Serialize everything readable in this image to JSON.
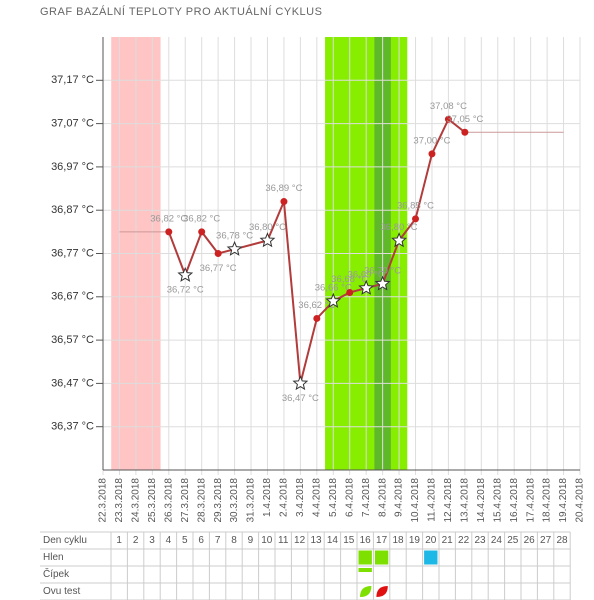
{
  "chart_data": {
    "type": "line",
    "title": "GRAF BAZÁLNÍ TEPLOTY PRO AKTUÁLNÍ CYKLUS",
    "x": [
      "22.3.2018",
      "23.3.2018",
      "24.3.2018",
      "25.3.2018",
      "26.3.2018",
      "27.3.2018",
      "28.3.2018",
      "29.3.2018",
      "30.3.2018",
      "31.3.2018",
      "1.4.2018",
      "2.4.2018",
      "3.4.2018",
      "4.4.2018",
      "5.4.2018",
      "6.4.2018",
      "7.4.2018",
      "8.4.2018",
      "9.4.2018",
      "10.4.2018",
      "11.4.2018",
      "12.4.2018",
      "13.4.2018",
      "14.4.2018",
      "15.4.2018",
      "16.4.2018",
      "17.4.2018",
      "18.4.2018",
      "19.4.2018",
      "20.4.2018"
    ],
    "ylim": [
      36.27,
      37.27
    ],
    "yticks": [
      {
        "value": 36.37,
        "label": "36,37 °C"
      },
      {
        "value": 36.47,
        "label": "36,47 °C"
      },
      {
        "value": 36.57,
        "label": "36,57 °C"
      },
      {
        "value": 36.67,
        "label": "36,67 °C"
      },
      {
        "value": 36.77,
        "label": "36,77 °C"
      },
      {
        "value": 36.87,
        "label": "36,87 °C"
      },
      {
        "value": 36.97,
        "label": "36,97 °C"
      },
      {
        "value": 37.07,
        "label": "37,07 °C"
      },
      {
        "value": 37.17,
        "label": "37,17 °C"
      }
    ],
    "grid": true,
    "bands": [
      {
        "from": "23.3.2018",
        "to": "25.3.2018",
        "color": "#ffc4c4"
      },
      {
        "from": "5.4.2018",
        "to": "9.4.2018",
        "color": "#88ee00"
      },
      {
        "from": "8.4.2018",
        "to": "8.4.2018",
        "color": "#5fb82a"
      }
    ],
    "series": [
      {
        "color": "#b23b3b",
        "x": [
          "26.3.2018",
          "27.3.2018",
          "28.3.2018",
          "29.3.2018",
          "30.3.2018",
          "1.4.2018",
          "2.4.2018",
          "3.4.2018",
          "4.4.2018",
          "5.4.2018",
          "6.4.2018",
          "7.4.2018",
          "8.4.2018",
          "9.4.2018",
          "10.4.2018",
          "11.4.2018",
          "12.4.2018",
          "13.4.2018"
        ],
        "values": [
          36.82,
          36.72,
          36.82,
          36.77,
          36.78,
          36.8,
          36.89,
          36.47,
          36.62,
          36.66,
          36.68,
          36.69,
          36.7,
          36.8,
          36.85,
          37.0,
          37.08,
          37.05
        ],
        "value_labels": [
          "36,82 °C",
          "36,72 °C",
          "36,82 °C",
          "36,77 °C",
          "36,78 °C",
          "36,80 °C",
          "36,89 °C",
          "36,47 °C",
          "36,62 °C",
          "36,66 °C",
          "36,68 °C",
          "36,69 °C",
          "36,70 °C",
          "36,80 °C",
          "36,85 °C",
          "37,00 °C",
          "37,08 °C",
          "37,05 °C"
        ],
        "markers": [
          "circle",
          "star",
          "circle",
          "circle",
          "star",
          "star",
          "circle",
          "star",
          "circle",
          "star",
          "circle",
          "star",
          "star",
          "star",
          "circle",
          "circle",
          "circle",
          "circle"
        ]
      },
      {
        "color": "#c99",
        "x": [
          "23.3.2018",
          "26.3.2018"
        ],
        "values": [
          36.82,
          36.82
        ],
        "thin": true
      },
      {
        "color": "#c99",
        "x": [
          "13.4.2018",
          "19.4.2018"
        ],
        "values": [
          37.05,
          37.05
        ],
        "thin": true
      }
    ]
  },
  "table": {
    "header": "Den cyklu",
    "days": [
      1,
      2,
      3,
      4,
      5,
      6,
      7,
      8,
      9,
      10,
      11,
      12,
      13,
      14,
      15,
      16,
      17,
      18,
      19,
      20,
      21,
      22,
      23,
      24,
      25,
      26,
      27,
      28
    ],
    "rows": [
      {
        "label": "Hlen",
        "marks": [
          {
            "day": 16,
            "color": "#7ee000",
            "shape": "square"
          },
          {
            "day": 17,
            "color": "#7ee000",
            "shape": "square"
          },
          {
            "day": 20,
            "color": "#1eb8e6",
            "shape": "square"
          }
        ]
      },
      {
        "label": "Čípek",
        "marks": [
          {
            "day": 16,
            "color": "#7ee000",
            "shape": "bar"
          }
        ]
      },
      {
        "label": "Ovu test",
        "marks": [
          {
            "day": 16,
            "color": "#7ee000",
            "shape": "leaf"
          },
          {
            "day": 17,
            "color": "#e01010",
            "shape": "leaf"
          }
        ]
      }
    ]
  }
}
